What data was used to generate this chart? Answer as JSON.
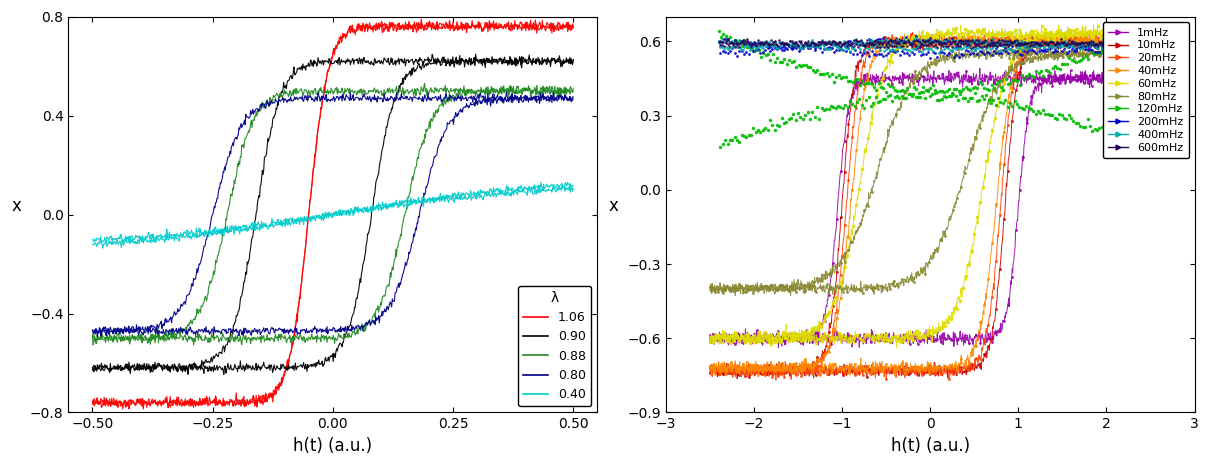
{
  "left_plot": {
    "xlabel": "h(t) (a.u.)",
    "ylabel": "x",
    "xlim": [
      -0.55,
      0.55
    ],
    "ylim": [
      -0.8,
      0.8
    ],
    "xticks": [
      -0.5,
      -0.25,
      0.0,
      0.25,
      0.5
    ],
    "yticks": [
      -0.8,
      -0.4,
      0.0,
      0.4,
      0.8
    ],
    "legend_title": "λ",
    "series": [
      {
        "label": "1.06",
        "color": "#ff0000"
      },
      {
        "label": "0.90",
        "color": "#000000"
      },
      {
        "label": "0.88",
        "color": "#228b22"
      },
      {
        "label": "0.80",
        "color": "#00008b"
      },
      {
        "label": "0.40",
        "color": "#00cccc"
      }
    ]
  },
  "right_plot": {
    "xlabel": "h(t) (a.u.)",
    "ylabel": "x",
    "xlim": [
      -3.0,
      3.0
    ],
    "ylim": [
      -0.9,
      0.7
    ],
    "xticks": [
      -3,
      -2,
      -1,
      0,
      1,
      2,
      3
    ],
    "yticks": [
      -0.9,
      -0.6,
      -0.3,
      0.0,
      0.3,
      0.6
    ],
    "series": [
      {
        "label": "1mHz",
        "color": "#9900aa"
      },
      {
        "label": "10mHz",
        "color": "#cc0000"
      },
      {
        "label": "20mHz",
        "color": "#ff4400"
      },
      {
        "label": "40mHz",
        "color": "#ff8800"
      },
      {
        "label": "60mHz",
        "color": "#dddd00"
      },
      {
        "label": "80mHz",
        "color": "#888833"
      },
      {
        "label": "120mHz",
        "color": "#00bb00"
      },
      {
        "label": "200mHz",
        "color": "#0000cc"
      },
      {
        "label": "400mHz",
        "color": "#00aaaa"
      },
      {
        "label": "600mHz",
        "color": "#220055"
      }
    ]
  }
}
